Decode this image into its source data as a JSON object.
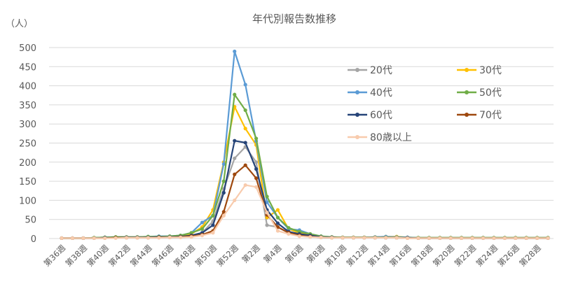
{
  "chart_data": {
    "type": "line",
    "title": "年代別報告数推移",
    "unit_label": "（人）",
    "xlabel": "",
    "ylabel": "",
    "ylim": [
      0,
      500
    ],
    "yticks": [
      0,
      50,
      100,
      150,
      200,
      250,
      300,
      350,
      400,
      450,
      500
    ],
    "grid": "horizontal",
    "legend_position": "right",
    "x": [
      "第36週",
      "第37週",
      "第38週",
      "第39週",
      "第40週",
      "第41週",
      "第42週",
      "第43週",
      "第44週",
      "第45週",
      "第46週",
      "第47週",
      "第48週",
      "第49週",
      "第50週",
      "第51週",
      "第52週",
      "第1週",
      "第2週",
      "第3週",
      "第4週",
      "第5週",
      "第6週",
      "第7週",
      "第8週",
      "第9週",
      "第10週",
      "第11週",
      "第12週",
      "第13週",
      "第14週",
      "第15週",
      "第16週",
      "第17週",
      "第18週",
      "第19週",
      "第20週",
      "第21週",
      "第22週",
      "第23週",
      "第24週",
      "第25週",
      "第26週",
      "第27週",
      "第28週",
      "第29週"
    ],
    "x_tick_labels": [
      "第36週",
      "第38週",
      "第40週",
      "第42週",
      "第44週",
      "第46週",
      "第48週",
      "第50週",
      "第52週",
      "第2週",
      "第4週",
      "第6週",
      "第8週",
      "第10週",
      "第12週",
      "第14週",
      "第16週",
      "第18週",
      "第20週",
      "第22週",
      "第24週",
      "第26週",
      "第28週"
    ],
    "series": [
      {
        "name": "20代",
        "color": "#a5a5a5",
        "values": [
          1,
          1,
          1,
          2,
          2,
          3,
          3,
          3,
          3,
          4,
          4,
          5,
          8,
          15,
          45,
          130,
          210,
          240,
          200,
          35,
          30,
          15,
          12,
          6,
          4,
          3,
          2,
          2,
          2,
          2,
          2,
          2,
          2,
          1,
          1,
          1,
          1,
          1,
          1,
          1,
          1,
          1,
          1,
          1,
          1,
          1
        ]
      },
      {
        "name": "30代",
        "color": "#ffc000",
        "values": [
          1,
          1,
          1,
          2,
          3,
          4,
          4,
          4,
          4,
          5,
          5,
          6,
          12,
          30,
          75,
          200,
          345,
          288,
          245,
          55,
          75,
          25,
          15,
          8,
          5,
          4,
          3,
          3,
          3,
          4,
          5,
          5,
          3,
          2,
          2,
          2,
          2,
          2,
          2,
          2,
          2,
          2,
          2,
          2,
          2,
          2
        ]
      },
      {
        "name": "40代",
        "color": "#5b9bd5",
        "values": [
          1,
          1,
          1,
          2,
          3,
          4,
          4,
          4,
          5,
          6,
          6,
          8,
          15,
          42,
          60,
          195,
          490,
          403,
          255,
          95,
          55,
          25,
          22,
          12,
          6,
          4,
          3,
          3,
          3,
          4,
          5,
          4,
          3,
          2,
          2,
          2,
          2,
          2,
          2,
          2,
          2,
          2,
          2,
          2,
          2,
          2
        ]
      },
      {
        "name": "50代",
        "color": "#70ad47",
        "values": [
          1,
          1,
          1,
          2,
          3,
          4,
          4,
          4,
          5,
          5,
          6,
          8,
          15,
          25,
          60,
          150,
          377,
          336,
          262,
          110,
          55,
          28,
          18,
          12,
          6,
          4,
          3,
          3,
          3,
          3,
          3,
          3,
          2,
          2,
          2,
          2,
          2,
          2,
          2,
          2,
          2,
          2,
          2,
          2,
          2,
          2
        ]
      },
      {
        "name": "60代",
        "color": "#264478",
        "values": [
          1,
          1,
          1,
          1,
          2,
          2,
          3,
          3,
          3,
          4,
          4,
          5,
          8,
          15,
          35,
          120,
          256,
          251,
          182,
          75,
          40,
          18,
          12,
          8,
          4,
          3,
          2,
          2,
          2,
          2,
          2,
          2,
          2,
          1,
          1,
          1,
          1,
          1,
          1,
          1,
          1,
          1,
          1,
          1,
          1,
          1
        ]
      },
      {
        "name": "70代",
        "color": "#9e480e",
        "values": [
          1,
          1,
          1,
          1,
          1,
          2,
          2,
          2,
          2,
          3,
          3,
          4,
          6,
          10,
          20,
          70,
          168,
          192,
          158,
          62,
          30,
          15,
          8,
          5,
          3,
          2,
          2,
          2,
          2,
          2,
          2,
          2,
          1,
          1,
          1,
          1,
          1,
          1,
          1,
          1,
          1,
          1,
          1,
          1,
          1,
          1
        ]
      },
      {
        "name": "80歳以上",
        "color": "#f8cbad",
        "values": [
          1,
          1,
          1,
          1,
          1,
          1,
          2,
          2,
          2,
          2,
          3,
          3,
          4,
          8,
          15,
          60,
          100,
          140,
          135,
          68,
          20,
          12,
          6,
          4,
          3,
          2,
          2,
          2,
          2,
          2,
          2,
          2,
          1,
          1,
          1,
          1,
          1,
          1,
          1,
          1,
          1,
          1,
          1,
          1,
          1,
          1
        ]
      }
    ]
  }
}
